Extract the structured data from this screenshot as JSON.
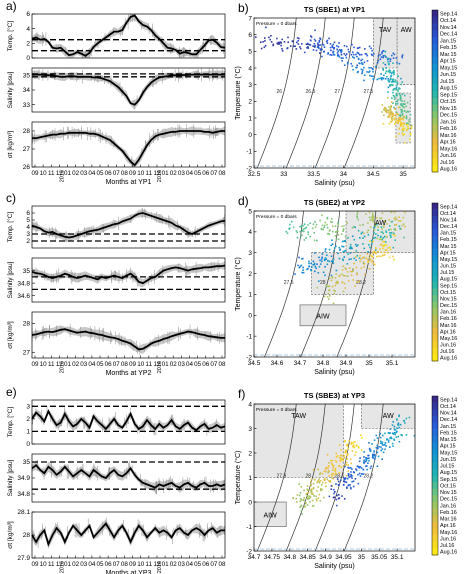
{
  "colors": {
    "line": "#000000",
    "band": "#bdbdbd",
    "water_mass_box": "#e6e6e6",
    "cmap_blue": "#2a2a8f",
    "cmap_yellow": "#f5e51b",
    "freezing": "#8fb6d6"
  },
  "colorbar_labels": [
    "Sep.14",
    "Oct.14",
    "Nov.14",
    "Dec.14",
    "Jan.15",
    "Feb.15",
    "Mar.15",
    "Apr.15",
    "May.15",
    "Jun.15",
    "Jul.15",
    "Aug.15",
    "Sep.15",
    "Oct.15",
    "Nov.15",
    "Dec.15",
    "Jan.16",
    "Feb.16",
    "Mar.16",
    "Apr.16",
    "May.16",
    "Jun.16",
    "Jul.16",
    "Aug.16"
  ],
  "time_ticks": [
    "09",
    "10",
    "11",
    "12",
    "01",
    "02",
    "03",
    "04",
    "05",
    "06",
    "07",
    "08",
    "09",
    "10",
    "11",
    "12",
    "01",
    "02",
    "03",
    "04",
    "05",
    "06",
    "07",
    "08"
  ],
  "ts_plot_labels": {
    "salinity_axis": "Salinity (psu)",
    "temperature_axis": "Temperature (°C)",
    "pressure_note": "Pressure = 0 dbars"
  },
  "chart_data": [
    {
      "id": "a",
      "panel_letter": "a)",
      "type": "line",
      "xlabel": "Months at YP1",
      "year_labels": [
        "2015",
        "2016"
      ],
      "subplots": [
        {
          "ylabel": "Temp. [°C]",
          "ylim": [
            0,
            6
          ],
          "ticks": [
            0,
            2,
            4,
            6
          ],
          "dashed_levels": [
            1,
            2.5
          ],
          "series": [
            2.6,
            2.8,
            2.5,
            2.6,
            2.2,
            1.4,
            1.3,
            1.4,
            0.9,
            0.4,
            0.5,
            0.8,
            0.6,
            0.3,
            0.7,
            1.5,
            2.0,
            2.4,
            2.8,
            3.2,
            3.6,
            3.6,
            3.8,
            4.8,
            5.6,
            5.8,
            5.0,
            4.5,
            4.3,
            3.8,
            3.1,
            2.6,
            2.0,
            1.4,
            1.3,
            1.1,
            0.6,
            0.8,
            0.7,
            0.5,
            0.5,
            1.1,
            1.7,
            2.4,
            2.5,
            2.1,
            1.5,
            1.4
          ]
        },
        {
          "ylabel": "Salinity [psu]",
          "ylim": [
            32.5,
            35.5
          ],
          "ticks": [
            33,
            34,
            35
          ],
          "dashed_levels": [
            34.9,
            35.1
          ],
          "series": [
            35.05,
            35.05,
            35.05,
            35.02,
            35.0,
            35.0,
            34.95,
            34.9,
            34.9,
            34.95,
            34.95,
            34.9,
            34.9,
            34.9,
            34.9,
            34.85,
            34.85,
            34.8,
            34.7,
            34.6,
            34.4,
            34.2,
            33.9,
            33.6,
            33.1,
            33.0,
            33.3,
            33.8,
            34.2,
            34.5,
            34.7,
            34.85,
            34.9,
            34.95,
            35.0,
            35.0,
            35.0,
            35.02,
            35.02,
            35.05,
            35.05,
            35.05,
            35.05,
            35.05,
            35.05,
            35.05,
            35.05,
            35.05
          ]
        },
        {
          "ylabel": "σt [kg/m³]",
          "ylim": [
            26,
            28.5
          ],
          "ticks": [
            26,
            27,
            28
          ],
          "dashed_levels": [],
          "series": [
            27.6,
            27.6,
            27.65,
            27.7,
            27.75,
            27.8,
            27.8,
            27.85,
            27.85,
            27.9,
            27.9,
            27.9,
            27.9,
            27.9,
            27.85,
            27.85,
            27.8,
            27.7,
            27.6,
            27.5,
            27.3,
            27.1,
            26.9,
            26.6,
            26.3,
            26.1,
            26.4,
            26.8,
            27.2,
            27.5,
            27.7,
            27.8,
            27.85,
            27.9,
            27.95,
            27.95,
            28.0,
            28.0,
            28.0,
            28.0,
            28.0,
            28.0,
            27.95,
            27.95,
            27.9,
            27.95,
            28.0,
            28.0
          ]
        }
      ]
    },
    {
      "id": "b",
      "panel_letter": "b)",
      "type": "scatter",
      "title": "TS (SBE1) at YP1",
      "xlim": [
        32.5,
        35.2
      ],
      "ylim": [
        -2,
        7
      ],
      "xticks": [
        32.5,
        33,
        33.5,
        34,
        34.5,
        35
      ],
      "yticks": [
        -2,
        -1,
        0,
        1,
        2,
        3,
        4,
        5,
        6,
        7
      ],
      "water_masses": [
        {
          "label": "TAV",
          "s": [
            34.5,
            34.9
          ],
          "t": [
            4.0,
            7.0
          ]
        },
        {
          "label": "AW",
          "s": [
            34.9,
            35.2
          ],
          "t": [
            3.0,
            7.0
          ]
        },
        {
          "label": "",
          "s": [
            34.88,
            35.12
          ],
          "t": [
            -0.5,
            2.5
          ]
        }
      ],
      "isopycnal_labels": [
        "26",
        "26.5",
        "27",
        "27.5"
      ],
      "scatter_clusters": [
        {
          "start": [
            32.55,
            5.8
          ],
          "end": [
            35.0,
            4.6
          ],
          "month_index": [
            0,
            6
          ],
          "n": 160,
          "spread": [
            0.06,
            0.25
          ]
        },
        {
          "start": [
            33.5,
            5.6
          ],
          "end": [
            34.9,
            3.0
          ],
          "month_index": [
            3,
            9
          ],
          "n": 110,
          "spread": [
            0.06,
            0.3
          ]
        },
        {
          "start": [
            34.7,
            4.5
          ],
          "end": [
            35.05,
            0.8
          ],
          "month_index": [
            10,
            15
          ],
          "n": 130,
          "spread": [
            0.06,
            0.4
          ]
        },
        {
          "start": [
            34.7,
            1.8
          ],
          "end": [
            35.05,
            0.2
          ],
          "month_index": [
            16,
            23
          ],
          "n": 110,
          "spread": [
            0.06,
            0.3
          ]
        }
      ]
    },
    {
      "id": "c",
      "panel_letter": "c)",
      "type": "line",
      "xlabel": "Months at YP2",
      "year_labels": [
        "2015",
        "2016"
      ],
      "subplots": [
        {
          "ylabel": "Temp. [°C]",
          "ylim": [
            1,
            7
          ],
          "ticks": [
            2,
            3,
            4,
            5,
            6
          ],
          "dashed_levels": [
            2.0,
            3.0
          ],
          "series": [
            4.2,
            4.0,
            3.8,
            3.4,
            3.2,
            3.3,
            3.0,
            2.8,
            2.6,
            2.5,
            2.6,
            2.8,
            3.0,
            3.2,
            3.4,
            3.5,
            3.6,
            3.8,
            4.0,
            4.2,
            4.4,
            4.5,
            4.8,
            5.0,
            5.2,
            5.6,
            5.9,
            6.0,
            5.8,
            5.6,
            5.4,
            5.2,
            5.0,
            4.8,
            4.6,
            4.2,
            4.0,
            3.6,
            3.2,
            3.0,
            3.3,
            3.6,
            3.9,
            4.2,
            4.4,
            4.6,
            4.8,
            4.9
          ]
        },
        {
          "ylabel": "Salinity [psu]",
          "ylim": [
            34.5,
            35.2
          ],
          "ticks": [
            34.6,
            34.8,
            35.0
          ],
          "dashed_levels": [
            34.7,
            34.9
          ],
          "series": [
            34.98,
            34.96,
            34.95,
            34.93,
            34.9,
            34.88,
            34.9,
            34.92,
            34.95,
            34.93,
            34.9,
            34.88,
            34.9,
            34.92,
            34.9,
            34.88,
            34.86,
            34.9,
            34.88,
            34.9,
            34.92,
            34.9,
            34.88,
            34.92,
            34.95,
            34.9,
            34.82,
            34.8,
            34.84,
            34.88,
            34.9,
            34.95,
            35.0,
            35.02,
            35.04,
            35.05,
            35.04,
            35.02,
            35.0,
            35.02,
            35.03,
            35.04,
            35.05,
            35.05,
            35.06,
            35.07,
            35.07,
            35.08
          ]
        },
        {
          "ylabel": "σt [kg/m³]",
          "ylim": [
            26.8,
            28.4
          ],
          "ticks": [
            27,
            28
          ],
          "dashed_levels": [],
          "series": [
            27.6,
            27.62,
            27.66,
            27.7,
            27.72,
            27.7,
            27.74,
            27.78,
            27.8,
            27.76,
            27.72,
            27.68,
            27.7,
            27.72,
            27.68,
            27.66,
            27.62,
            27.6,
            27.56,
            27.52,
            27.5,
            27.46,
            27.4,
            27.36,
            27.3,
            27.2,
            27.1,
            27.12,
            27.2,
            27.3,
            27.36,
            27.4,
            27.46,
            27.5,
            27.56,
            27.6,
            27.64,
            27.68,
            27.72,
            27.7,
            27.66,
            27.62,
            27.6,
            27.56,
            27.54,
            27.52,
            27.5,
            27.5
          ]
        }
      ]
    },
    {
      "id": "d",
      "panel_letter": "d)",
      "type": "scatter",
      "title": "TS (SBE2) at YP2",
      "xlim": [
        34.5,
        35.2
      ],
      "ylim": [
        -2,
        5
      ],
      "xticks": [
        34.5,
        34.6,
        34.7,
        34.8,
        34.9,
        35,
        35.1
      ],
      "yticks": [
        -2,
        -1,
        0,
        1,
        2,
        3,
        4,
        5
      ],
      "water_masses": [
        {
          "label": "AW",
          "s": [
            34.9,
            35.2
          ],
          "t": [
            3.0,
            5.0
          ]
        },
        {
          "label": "AIW",
          "s": [
            34.7,
            34.9
          ],
          "t": [
            -0.5,
            0.5
          ]
        },
        {
          "label": "",
          "s": [
            34.75,
            35.02
          ],
          "t": [
            1.0,
            3.0
          ]
        }
      ],
      "isopycnal_labels": [
        "27.5",
        "28",
        "28.2"
      ],
      "scatter_clusters": [
        {
          "start": [
            34.65,
            4.1
          ],
          "end": [
            35.15,
            4.6
          ],
          "month_index": [
            12,
            19
          ],
          "n": 150,
          "spread": [
            0.02,
            0.3
          ]
        },
        {
          "start": [
            34.7,
            2.2
          ],
          "end": [
            35.12,
            4.2
          ],
          "month_index": [
            5,
            14
          ],
          "n": 170,
          "spread": [
            0.02,
            0.35
          ]
        },
        {
          "start": [
            34.8,
            1.0
          ],
          "end": [
            35.1,
            3.6
          ],
          "month_index": [
            15,
            23
          ],
          "n": 130,
          "spread": [
            0.02,
            0.3
          ]
        }
      ]
    },
    {
      "id": "e",
      "panel_letter": "e)",
      "type": "line",
      "xlabel": "Months at YP3",
      "year_labels": [
        "2015",
        "2016"
      ],
      "subplots": [
        {
          "ylabel": "Temp. [°C]",
          "ylim": [
            0,
            3.5
          ],
          "ticks": [
            0,
            1,
            2,
            3
          ],
          "dashed_levels": [
            1.0,
            3.0
          ],
          "series": [
            2.0,
            2.5,
            2.2,
            1.8,
            2.6,
            2.0,
            1.5,
            1.7,
            2.4,
            1.8,
            1.4,
            1.6,
            2.0,
            1.7,
            1.3,
            2.2,
            1.8,
            1.5,
            1.2,
            1.6,
            2.0,
            1.5,
            1.3,
            1.8,
            2.4,
            1.6,
            1.2,
            1.4,
            1.9,
            1.5,
            1.2,
            1.6,
            1.3,
            1.5,
            1.9,
            1.4,
            1.2,
            1.5,
            1.7,
            1.3,
            1.1,
            1.4,
            1.6,
            1.2,
            1.3,
            1.5,
            1.3,
            1.4
          ]
        },
        {
          "ylabel": "Salinity [psu]",
          "ylim": [
            34.75,
            35.05
          ],
          "ticks": [
            34.8,
            34.9,
            35.0
          ],
          "dashed_levels": [
            34.83,
            35.0
          ],
          "series": [
            34.96,
            34.98,
            34.95,
            34.93,
            34.97,
            34.95,
            34.92,
            34.94,
            34.97,
            34.94,
            34.91,
            34.93,
            34.95,
            34.93,
            34.91,
            34.95,
            34.93,
            34.91,
            34.9,
            34.93,
            34.95,
            34.92,
            34.91,
            34.93,
            34.96,
            34.92,
            34.89,
            34.87,
            34.86,
            34.85,
            34.84,
            34.86,
            34.85,
            34.86,
            34.87,
            34.85,
            34.84,
            34.86,
            34.87,
            34.85,
            34.84,
            34.86,
            34.87,
            34.85,
            34.85,
            34.86,
            34.85,
            34.86
          ]
        },
        {
          "ylabel": "σt [kg/m³]",
          "ylim": [
            27.9,
            28.1
          ],
          "ticks": [
            27.9,
            28.0,
            28.1
          ],
          "dashed_levels": [],
          "series": [
            28.0,
            27.97,
            28.0,
            28.02,
            27.96,
            28.0,
            28.03,
            28.01,
            27.97,
            28.01,
            28.04,
            28.02,
            28.0,
            28.02,
            28.04,
            27.99,
            28.01,
            28.03,
            28.05,
            28.02,
            27.99,
            28.02,
            28.04,
            28.01,
            27.97,
            28.01,
            28.04,
            28.02,
            27.99,
            28.01,
            28.03,
            28.01,
            28.02,
            28.01,
            27.99,
            28.02,
            28.03,
            28.01,
            28.0,
            28.02,
            28.03,
            28.02,
            28.0,
            28.02,
            28.03,
            28.01,
            28.02,
            28.02
          ]
        }
      ]
    },
    {
      "id": "f",
      "panel_letter": "f)",
      "type": "scatter",
      "title": "TS (SBE3) at YP3",
      "xlim": [
        34.7,
        35.15
      ],
      "ylim": [
        -2,
        4
      ],
      "xticks": [
        34.7,
        34.75,
        34.8,
        34.85,
        34.9,
        34.95,
        35,
        35.05,
        35.1
      ],
      "yticks": [
        -2,
        -1,
        0,
        1,
        2,
        3,
        4
      ],
      "water_masses": [
        {
          "label": "TAW",
          "s": [
            34.7,
            34.95
          ],
          "t": [
            1.0,
            4.0
          ]
        },
        {
          "label": "AW",
          "s": [
            35.0,
            35.15
          ],
          "t": [
            3.0,
            4.0
          ]
        },
        {
          "label": "AIW",
          "s": [
            34.7,
            34.79
          ],
          "t": [
            -1.0,
            0.0
          ]
        }
      ],
      "isopycnal_labels": [
        "27.9",
        "28",
        "28.1",
        "28.2"
      ],
      "scatter_clusters": [
        {
          "start": [
            34.82,
            -0.2
          ],
          "end": [
            34.98,
            2.3
          ],
          "month_index": [
            14,
            23
          ],
          "n": 200,
          "spread": [
            0.012,
            0.25
          ]
        },
        {
          "start": [
            34.92,
            0.3
          ],
          "end": [
            35.12,
            3.3
          ],
          "month_index": [
            0,
            12
          ],
          "n": 200,
          "spread": [
            0.012,
            0.25
          ]
        }
      ]
    }
  ]
}
